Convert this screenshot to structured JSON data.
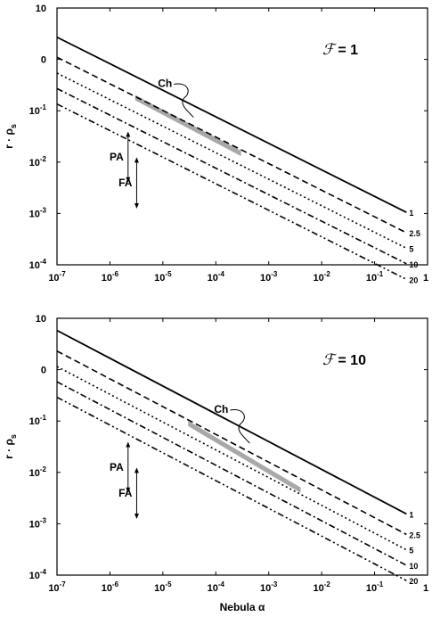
{
  "chart_data": [
    {
      "type": "line",
      "panel_label": "ℱ = 1",
      "panel_label_parts": {
        "symbol": "ℱ",
        "value": "= 1"
      },
      "xlabel": "",
      "ylabel": "r · ρs",
      "xscale": "log",
      "yscale": "log",
      "xlim": [
        1e-07,
        1
      ],
      "ylim": [
        0.0001,
        10
      ],
      "xticks": [
        "10-7",
        "10-6",
        "10-5",
        "10-4",
        "10-3",
        "10-2",
        "10-1",
        "1"
      ],
      "yticks": [
        "10",
        "0",
        "10-1",
        "10-2",
        "10-3",
        "10-4"
      ],
      "series": [
        {
          "name": "1",
          "style": "solid",
          "x": [
            1e-07,
            0.4
          ],
          "y": [
            2.7,
            0.00105
          ]
        },
        {
          "name": "2.5",
          "style": "dashed",
          "x": [
            1e-07,
            0.4
          ],
          "y": [
            1.1,
            0.00042
          ]
        },
        {
          "name": "5",
          "style": "dotted",
          "x": [
            1e-07,
            0.4
          ],
          "y": [
            0.54,
            0.00021
          ]
        },
        {
          "name": "10",
          "style": "dash-dot",
          "x": [
            1e-07,
            0.4
          ],
          "y": [
            0.27,
            0.000105
          ]
        },
        {
          "name": "20",
          "style": "dash-dot-dot",
          "x": [
            1e-07,
            0.4
          ],
          "y": [
            0.135,
            5.2e-05
          ]
        }
      ],
      "band": {
        "label": "Ch",
        "x": [
          3e-06,
          0.0003
        ],
        "y_start": 0.18,
        "y_end": 0.0147
      },
      "arrows": [
        {
          "label": "PA",
          "x": 2.2e-06,
          "y": [
            0.035,
            0.0045
          ]
        },
        {
          "label": "FA",
          "x": 3.2e-06,
          "y": [
            0.011,
            0.0014
          ]
        }
      ]
    },
    {
      "type": "line",
      "panel_label": "ℱ = 10",
      "panel_label_parts": {
        "symbol": "ℱ",
        "value": "= 10"
      },
      "xlabel": "Nebula α",
      "ylabel": "r · ρs",
      "xscale": "log",
      "yscale": "log",
      "xlim": [
        1e-07,
        1
      ],
      "ylim": [
        0.0001,
        10
      ],
      "xticks": [
        "10-7",
        "10-6",
        "10-5",
        "10-4",
        "10-3",
        "10-2",
        "10-1",
        "1"
      ],
      "yticks": [
        "10",
        "0",
        "10-1",
        "10-2",
        "10-3",
        "10-4"
      ],
      "series": [
        {
          "name": "1",
          "style": "solid",
          "x": [
            1e-07,
            0.4
          ],
          "y": [
            5.8,
            0.00155
          ]
        },
        {
          "name": "2.5",
          "style": "dashed",
          "x": [
            1e-07,
            0.4
          ],
          "y": [
            2.3,
            0.00062
          ]
        },
        {
          "name": "5",
          "style": "dotted",
          "x": [
            1e-07,
            0.4
          ],
          "y": [
            1.15,
            0.00031
          ]
        },
        {
          "name": "10",
          "style": "dash-dot",
          "x": [
            1e-07,
            0.4
          ],
          "y": [
            0.58,
            0.000155
          ]
        },
        {
          "name": "20",
          "style": "dash-dot-dot",
          "x": [
            1e-07,
            0.4
          ],
          "y": [
            0.29,
            7.8e-05
          ]
        }
      ],
      "band": {
        "label": "Ch",
        "x": [
          3e-05,
          0.004
        ],
        "y_start": 0.09,
        "y_end": 0.0045
      },
      "arrows": [
        {
          "label": "PA",
          "x": 2.2e-06,
          "y": [
            0.035,
            0.0045
          ]
        },
        {
          "label": "FA",
          "x": 3.2e-06,
          "y": [
            0.011,
            0.0014
          ]
        }
      ]
    }
  ]
}
